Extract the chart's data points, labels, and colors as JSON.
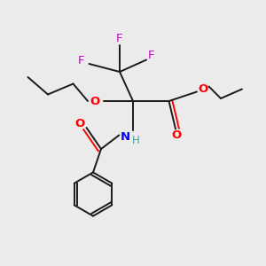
{
  "background_color": "#ebebeb",
  "bond_color": "#1a1a1a",
  "O_color": "#ff0000",
  "N_color": "#0000ff",
  "F_color": "#cc00cc",
  "H_color": "#4d9999",
  "figsize": [
    3.0,
    3.0
  ],
  "dpi": 100,
  "xlim": [
    0,
    10
  ],
  "ylim": [
    0,
    10
  ]
}
